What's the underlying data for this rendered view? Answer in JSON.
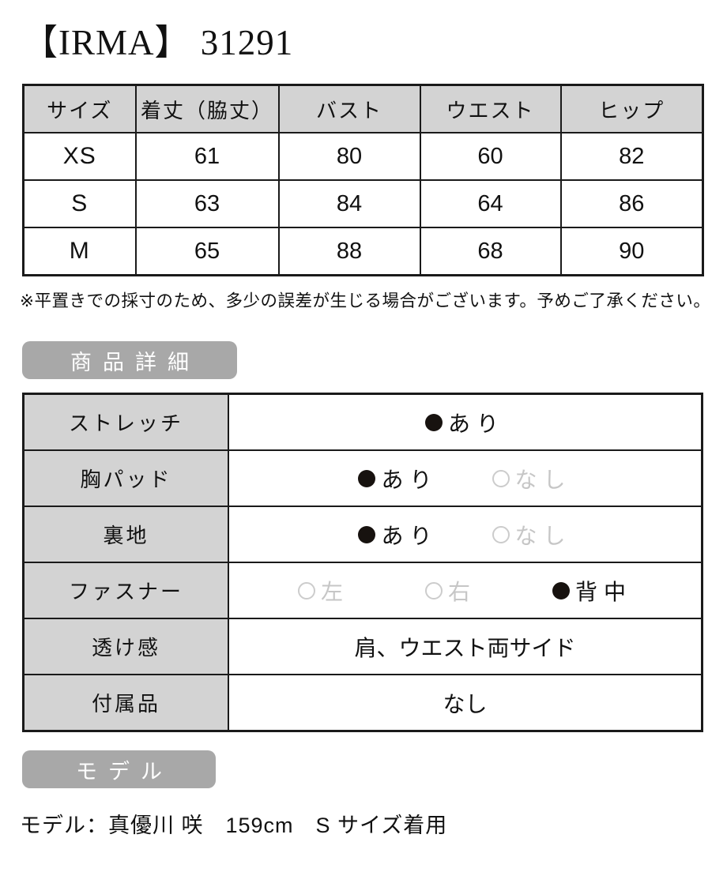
{
  "page": {
    "title": "【IRMA】 31291"
  },
  "size_table": {
    "headers": [
      "サイズ",
      "着丈（脇丈）",
      "バスト",
      "ウエスト",
      "ヒップ"
    ],
    "rows": [
      {
        "size": "XS",
        "values": [
          "61",
          "80",
          "60",
          "82"
        ]
      },
      {
        "size": "S",
        "values": [
          "63",
          "84",
          "64",
          "86"
        ]
      },
      {
        "size": "M",
        "values": [
          "65",
          "88",
          "68",
          "90"
        ]
      }
    ]
  },
  "note": "※平置きでの採寸のため、多少の誤差が生じる場合がございます。予めご了承ください。",
  "sections": {
    "details_heading": "商品詳細",
    "model_heading": "モデル"
  },
  "details_table": {
    "rows": [
      {
        "label": "ストレッチ",
        "options": [
          {
            "text": "あり",
            "selected": true
          }
        ]
      },
      {
        "label": "胸パッド",
        "options": [
          {
            "text": "あり",
            "selected": true
          },
          {
            "text": "なし",
            "selected": false
          }
        ]
      },
      {
        "label": "裏地",
        "options": [
          {
            "text": "あり",
            "selected": true
          },
          {
            "text": "なし",
            "selected": false
          }
        ]
      },
      {
        "label": "ファスナー",
        "options": [
          {
            "text": "左",
            "selected": false
          },
          {
            "text": "右",
            "selected": false
          },
          {
            "text": "背中",
            "selected": true
          }
        ]
      },
      {
        "label": "透け感",
        "text": "肩、ウエスト両サイド"
      },
      {
        "label": "付属品",
        "text": "なし"
      }
    ]
  },
  "model_info": "モデル：真優川 咲　159cm　S サイズ着用",
  "colors": {
    "table_header_bg": "#d3d3d3",
    "badge_bg": "#a8a8a8",
    "border": "#1a1a1a",
    "unselected_gray": "#c6c6c6",
    "selected_dot": "#17120f"
  }
}
